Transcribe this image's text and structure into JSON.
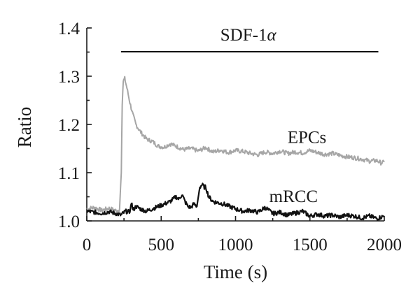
{
  "chart_data": {
    "type": "line",
    "xlabel": "Time (s)",
    "ylabel": "Ratio",
    "xlim": [
      0,
      2000
    ],
    "ylim": [
      1.0,
      1.4
    ],
    "x_ticks": [
      0,
      500,
      1000,
      1500,
      2000
    ],
    "x_tick_labels": [
      "0",
      "500",
      "1000",
      "1500",
      "2000"
    ],
    "y_ticks": [
      1.0,
      1.1,
      1.2,
      1.3,
      1.4
    ],
    "y_tick_labels": [
      "1.0",
      "1.1",
      "1.2",
      "1.3",
      "1.4"
    ],
    "grid": false,
    "stimulus": {
      "label_text": "SDF-1",
      "label_symbol": "α",
      "start": 230,
      "end": 1960
    },
    "series": [
      {
        "name": "EPCs",
        "color": "#a6a6a6",
        "x": [
          0,
          50,
          100,
          150,
          200,
          220,
          232,
          238,
          245,
          255,
          270,
          290,
          310,
          330,
          360,
          400,
          440,
          480,
          520,
          560,
          600,
          650,
          700,
          750,
          800,
          850,
          900,
          950,
          1000,
          1050,
          1100,
          1150,
          1200,
          1250,
          1300,
          1350,
          1400,
          1450,
          1500,
          1550,
          1600,
          1650,
          1700,
          1750,
          1800,
          1850,
          1900,
          1950,
          1980,
          2000
        ],
        "y": [
          1.025,
          1.028,
          1.022,
          1.026,
          1.021,
          1.024,
          1.1,
          1.24,
          1.29,
          1.295,
          1.275,
          1.245,
          1.22,
          1.2,
          1.185,
          1.17,
          1.165,
          1.155,
          1.153,
          1.16,
          1.155,
          1.148,
          1.15,
          1.145,
          1.152,
          1.143,
          1.147,
          1.142,
          1.146,
          1.144,
          1.14,
          1.137,
          1.143,
          1.14,
          1.145,
          1.14,
          1.143,
          1.141,
          1.146,
          1.142,
          1.138,
          1.14,
          1.136,
          1.133,
          1.131,
          1.128,
          1.124,
          1.125,
          1.12,
          1.122
        ]
      },
      {
        "name": "mRCC",
        "color": "#111111",
        "x": [
          0,
          50,
          100,
          150,
          200,
          230,
          260,
          290,
          300,
          310,
          330,
          360,
          400,
          440,
          480,
          520,
          560,
          600,
          620,
          640,
          660,
          680,
          700,
          720,
          740,
          760,
          775,
          790,
          800,
          820,
          850,
          880,
          920,
          960,
          1000,
          1050,
          1100,
          1150,
          1200,
          1250,
          1300,
          1350,
          1400,
          1450,
          1500,
          1550,
          1600,
          1650,
          1700,
          1750,
          1800,
          1850,
          1900,
          1950,
          2000
        ],
        "y": [
          1.02,
          1.018,
          1.016,
          1.019,
          1.015,
          1.012,
          1.02,
          1.018,
          1.04,
          1.022,
          1.03,
          1.025,
          1.02,
          1.025,
          1.03,
          1.035,
          1.04,
          1.05,
          1.045,
          1.055,
          1.04,
          1.03,
          1.028,
          1.035,
          1.03,
          1.07,
          1.075,
          1.07,
          1.07,
          1.05,
          1.04,
          1.038,
          1.035,
          1.03,
          1.025,
          1.02,
          1.022,
          1.018,
          1.028,
          1.015,
          1.018,
          1.012,
          1.016,
          1.02,
          1.01,
          1.014,
          1.01,
          1.012,
          1.008,
          1.012,
          1.01,
          1.006,
          1.01,
          1.005,
          1.01
        ]
      }
    ]
  }
}
